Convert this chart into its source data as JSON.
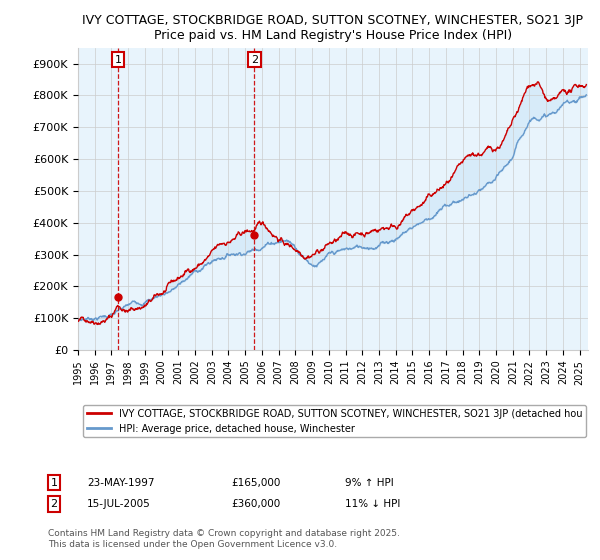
{
  "title1": "IVY COTTAGE, STOCKBRIDGE ROAD, SUTTON SCOTNEY, WINCHESTER, SO21 3JP",
  "title2": "Price paid vs. HM Land Registry's House Price Index (HPI)",
  "ylabel_ticks": [
    "£0",
    "£100K",
    "£200K",
    "£300K",
    "£400K",
    "£500K",
    "£600K",
    "£700K",
    "£800K",
    "£900K"
  ],
  "ytick_vals": [
    0,
    100000,
    200000,
    300000,
    400000,
    500000,
    600000,
    700000,
    800000,
    900000
  ],
  "ylim": [
    0,
    950000
  ],
  "xlim_start": 1995.0,
  "xlim_end": 2025.5,
  "background_color": "#ffffff",
  "grid_color": "#cccccc",
  "red_line_color": "#cc0000",
  "blue_line_color": "#6699cc",
  "fill_color": "#d0e8f8",
  "dashed_marker_color": "#cc0000",
  "marker1_x": 1997.39,
  "marker1_y": 165000,
  "marker2_x": 2005.54,
  "marker2_y": 360000,
  "legend_label_red": "IVY COTTAGE, STOCKBRIDGE ROAD, SUTTON SCOTNEY, WINCHESTER, SO21 3JP (detached hou",
  "legend_label_blue": "HPI: Average price, detached house, Winchester",
  "footer": "Contains HM Land Registry data © Crown copyright and database right 2025.\nThis data is licensed under the Open Government Licence v3.0.",
  "xtick_years": [
    1995,
    1996,
    1997,
    1998,
    1999,
    2000,
    2001,
    2002,
    2003,
    2004,
    2005,
    2006,
    2007,
    2008,
    2009,
    2010,
    2011,
    2012,
    2013,
    2014,
    2015,
    2016,
    2017,
    2018,
    2019,
    2020,
    2021,
    2022,
    2023,
    2024,
    2025
  ]
}
